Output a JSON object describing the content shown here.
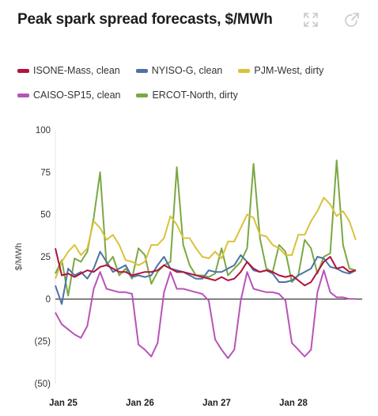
{
  "header": {
    "title": "Peak spark spread forecasts, $/MWh",
    "expand_icon": "expand-icon",
    "popout_icon": "external-link-icon"
  },
  "colors": {
    "ISONE": "#b3123c",
    "NYISO": "#4e72a5",
    "PJM": "#d9c23c",
    "CAISO": "#b654b8",
    "ERCOT": "#7aa843"
  },
  "chart_data": {
    "type": "line",
    "title": "Peak spark spread forecasts, $/MWh",
    "xlabel": "",
    "ylabel": "$/MWh",
    "ylim": [
      -50,
      100
    ],
    "yticks": [
      100,
      75,
      50,
      25,
      0,
      -25,
      -50
    ],
    "ytick_labels": [
      "100",
      "75",
      "50",
      "25",
      "0",
      "(25)",
      "(50)"
    ],
    "xlim": [
      0,
      4
    ],
    "xticks": [
      0,
      1,
      2,
      3
    ],
    "xtick_labels": [
      "Jan 25",
      "Jan 26",
      "Jan 27",
      "Jan 28"
    ],
    "grid": false,
    "legend_position": "top",
    "x": [
      0.0,
      0.083,
      0.167,
      0.25,
      0.333,
      0.417,
      0.5,
      0.583,
      0.667,
      0.75,
      0.833,
      0.917,
      1.0,
      1.083,
      1.167,
      1.25,
      1.333,
      1.417,
      1.5,
      1.583,
      1.667,
      1.75,
      1.833,
      1.917,
      2.0,
      2.083,
      2.167,
      2.25,
      2.333,
      2.417,
      2.5,
      2.583,
      2.667,
      2.75,
      2.833,
      2.917,
      3.0,
      3.083,
      3.167,
      3.25,
      3.333,
      3.417,
      3.5,
      3.583,
      3.667,
      3.75,
      3.833,
      3.917
    ],
    "series": [
      {
        "name": "ISONE-Mass, clean",
        "color_key": "ISONE",
        "values": [
          30,
          14,
          15,
          13,
          15,
          17,
          16,
          19,
          20,
          18,
          16,
          16,
          14,
          15,
          16,
          16,
          17,
          20,
          18,
          16,
          16,
          15,
          14,
          13,
          12,
          11,
          13,
          11,
          12,
          16,
          22,
          18,
          16,
          17,
          16,
          14,
          13,
          14,
          11,
          8,
          10,
          16,
          22,
          25,
          18,
          19,
          16,
          17
        ]
      },
      {
        "name": "NYISO-G, clean",
        "color_key": "NYISO",
        "values": [
          8,
          -3,
          18,
          14,
          16,
          12,
          18,
          28,
          22,
          16,
          18,
          20,
          13,
          14,
          13,
          14,
          20,
          25,
          18,
          17,
          16,
          14,
          12,
          12,
          17,
          16,
          16,
          18,
          20,
          26,
          22,
          17,
          16,
          17,
          15,
          10,
          10,
          11,
          14,
          16,
          18,
          25,
          24,
          19,
          18,
          16,
          15,
          17
        ]
      },
      {
        "name": "PJM-West, dirty",
        "color_key": "PJM",
        "values": [
          12,
          22,
          28,
          32,
          26,
          30,
          46,
          42,
          35,
          38,
          32,
          23,
          22,
          20,
          22,
          32,
          32,
          36,
          49,
          44,
          36,
          36,
          30,
          25,
          24,
          28,
          24,
          34,
          34,
          42,
          50,
          48,
          38,
          37,
          32,
          30,
          26,
          26,
          38,
          38,
          46,
          52,
          60,
          56,
          49,
          52,
          46,
          35
        ]
      },
      {
        "name": "CAISO-SP15, clean",
        "color_key": "CAISO",
        "values": [
          -8,
          -15,
          -18,
          -21,
          -23,
          -16,
          6,
          16,
          6,
          5,
          4,
          4,
          3,
          -27,
          -30,
          -34,
          -26,
          4,
          16,
          6,
          6,
          5,
          4,
          3,
          -1,
          -24,
          -30,
          -35,
          -30,
          -1,
          16,
          6,
          5,
          4,
          4,
          3,
          -1,
          -26,
          -30,
          -34,
          -30,
          4,
          17,
          4,
          1,
          1,
          0,
          0
        ]
      },
      {
        "name": "ERCOT-North, dirty",
        "color_key": "ERCOT",
        "values": [
          15,
          23,
          2,
          24,
          22,
          28,
          48,
          75,
          20,
          25,
          14,
          18,
          12,
          30,
          26,
          9,
          16,
          20,
          22,
          78,
          32,
          20,
          14,
          14,
          13,
          15,
          30,
          14,
          18,
          22,
          30,
          80,
          36,
          18,
          16,
          32,
          28,
          10,
          14,
          35,
          30,
          15,
          25,
          27,
          82,
          32,
          18,
          17
        ]
      }
    ]
  }
}
